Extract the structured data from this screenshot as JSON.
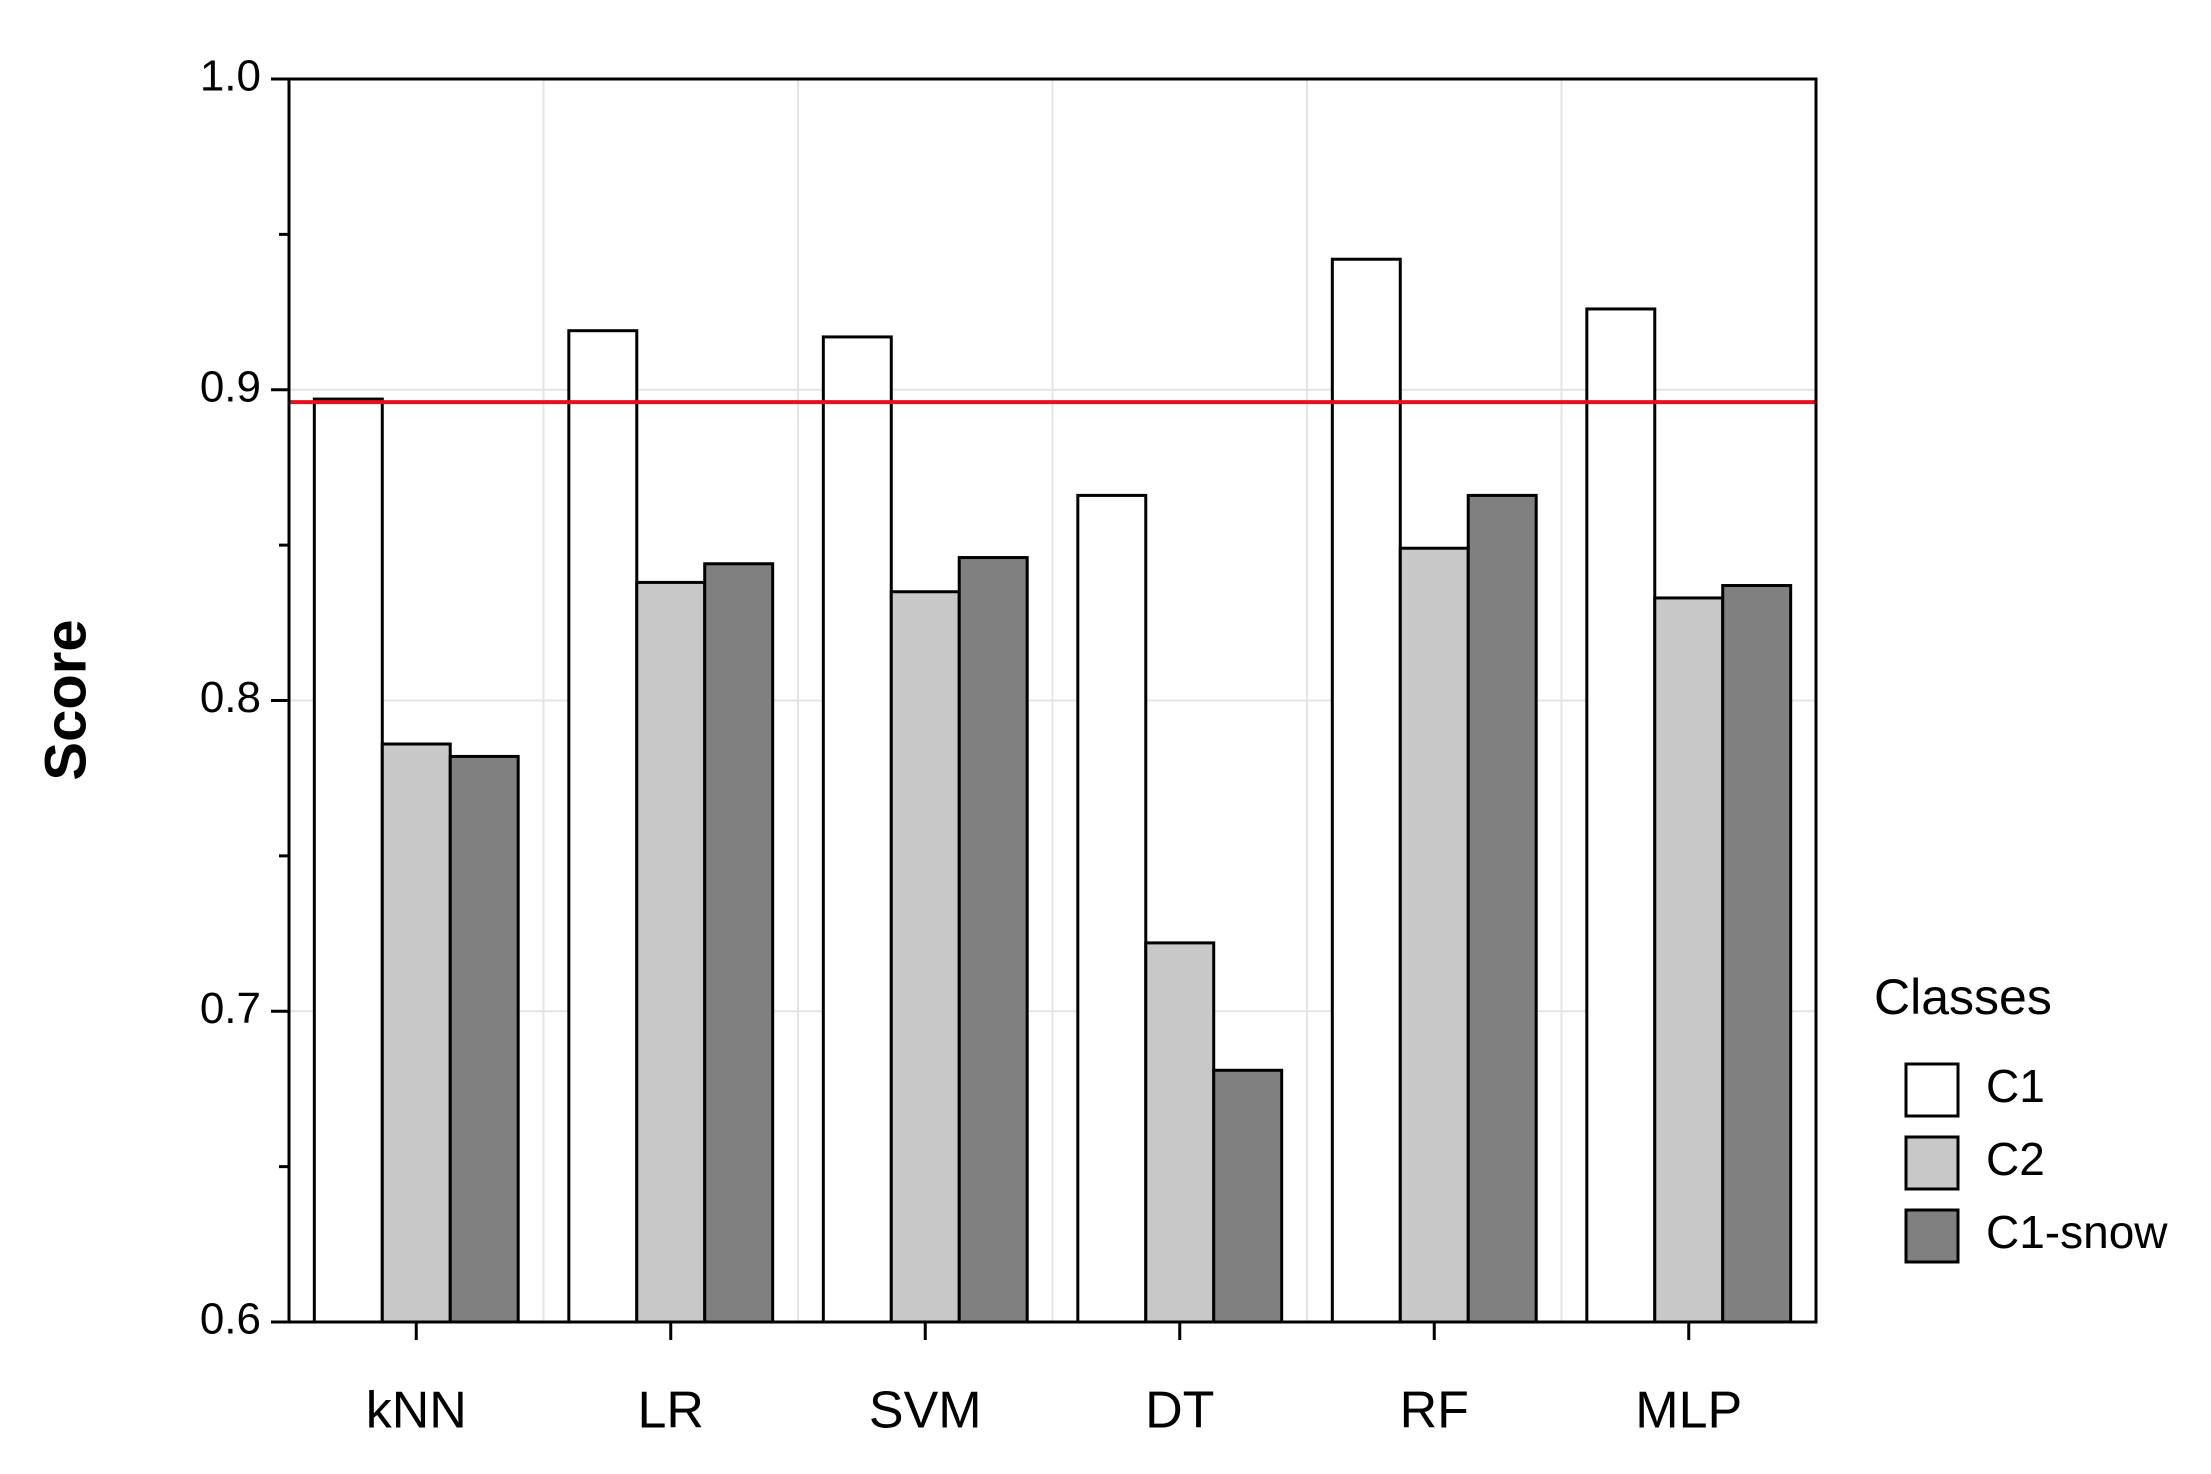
{
  "chart_data": {
    "type": "bar",
    "y_label": "Score",
    "categories": [
      "kNN",
      "LR",
      "SVM",
      "DT",
      "RF",
      "MLP"
    ],
    "series": [
      {
        "name": "C1",
        "color": "#ffffff",
        "values": [
          0.897,
          0.919,
          0.917,
          0.866,
          0.942,
          0.926
        ]
      },
      {
        "name": "C2",
        "color": "#c8c8c8",
        "values": [
          0.786,
          0.838,
          0.835,
          0.722,
          0.849,
          0.833
        ]
      },
      {
        "name": "C1-snow",
        "color": "#808080",
        "values": [
          0.782,
          0.844,
          0.846,
          0.681,
          0.866,
          0.837
        ]
      }
    ],
    "legend_title": "Classes",
    "legend": "outside-right",
    "ylim": [
      0.6,
      1.0
    ],
    "yticks": [
      0.6,
      0.7,
      0.8,
      0.9,
      {
        "value": 1.0,
        "label": "1.0"
      }
    ],
    "yminor": [
      0.65,
      0.75,
      0.85,
      0.95
    ],
    "reference_line": {
      "value": 0.896,
      "color": "#e8101c"
    },
    "grid": true
  }
}
